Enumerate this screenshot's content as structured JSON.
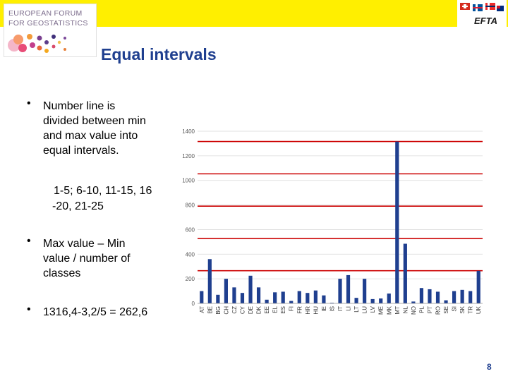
{
  "header": {
    "logo_line1": "EUROPEAN FORUM",
    "logo_line2": "FOR GEOSTATISTICS",
    "efta_label": "EFTA"
  },
  "title": "Equal intervals",
  "bullets": [
    {
      "lines": [
        "Number line is",
        "divided between min",
        "and max value into",
        "equal intervals."
      ]
    },
    {
      "lines": [
        "Max value – Min",
        "value / number of",
        "classes"
      ]
    },
    {
      "lines": [
        "1316,4-3,2/5 = 262,6"
      ]
    }
  ],
  "interval_text": [
    "1-5; 6-10, 11-15, 16",
    "-20, 21-25"
  ],
  "page_number": "8",
  "colors": {
    "bar": "#1f3f8f",
    "interval_line": "#cc0000",
    "title": "#1f3f8f",
    "topbar": "#ffef00"
  },
  "chart_data": {
    "type": "bar",
    "categories": [
      "AT",
      "BE",
      "BG",
      "CH",
      "CZ",
      "CY",
      "DE",
      "DK",
      "EE",
      "EL",
      "ES",
      "FI",
      "FR",
      "HR",
      "HU",
      "IE",
      "IS",
      "IT",
      "LI",
      "LT",
      "LU",
      "LV",
      "ME",
      "MK",
      "MT",
      "NL",
      "NO",
      "PL",
      "PT",
      "RO",
      "SE",
      "SI",
      "SK",
      "TR",
      "UK"
    ],
    "values": [
      100,
      360,
      70,
      200,
      130,
      85,
      225,
      130,
      30,
      90,
      95,
      20,
      100,
      85,
      105,
      65,
      5,
      200,
      230,
      45,
      200,
      35,
      40,
      80,
      1316,
      485,
      15,
      125,
      115,
      95,
      25,
      100,
      110,
      100,
      265
    ],
    "yticks": [
      0,
      200,
      400,
      600,
      800,
      1000,
      1200,
      1400
    ],
    "ytick_labels": [
      "0",
      "200",
      "400",
      "600",
      "800",
      "1000",
      "1200",
      "1400"
    ],
    "ylim": [
      0,
      1400
    ],
    "interval_lines": [
      265.8,
      528.4,
      791,
      1053.6,
      1316.2
    ],
    "grid": true
  }
}
